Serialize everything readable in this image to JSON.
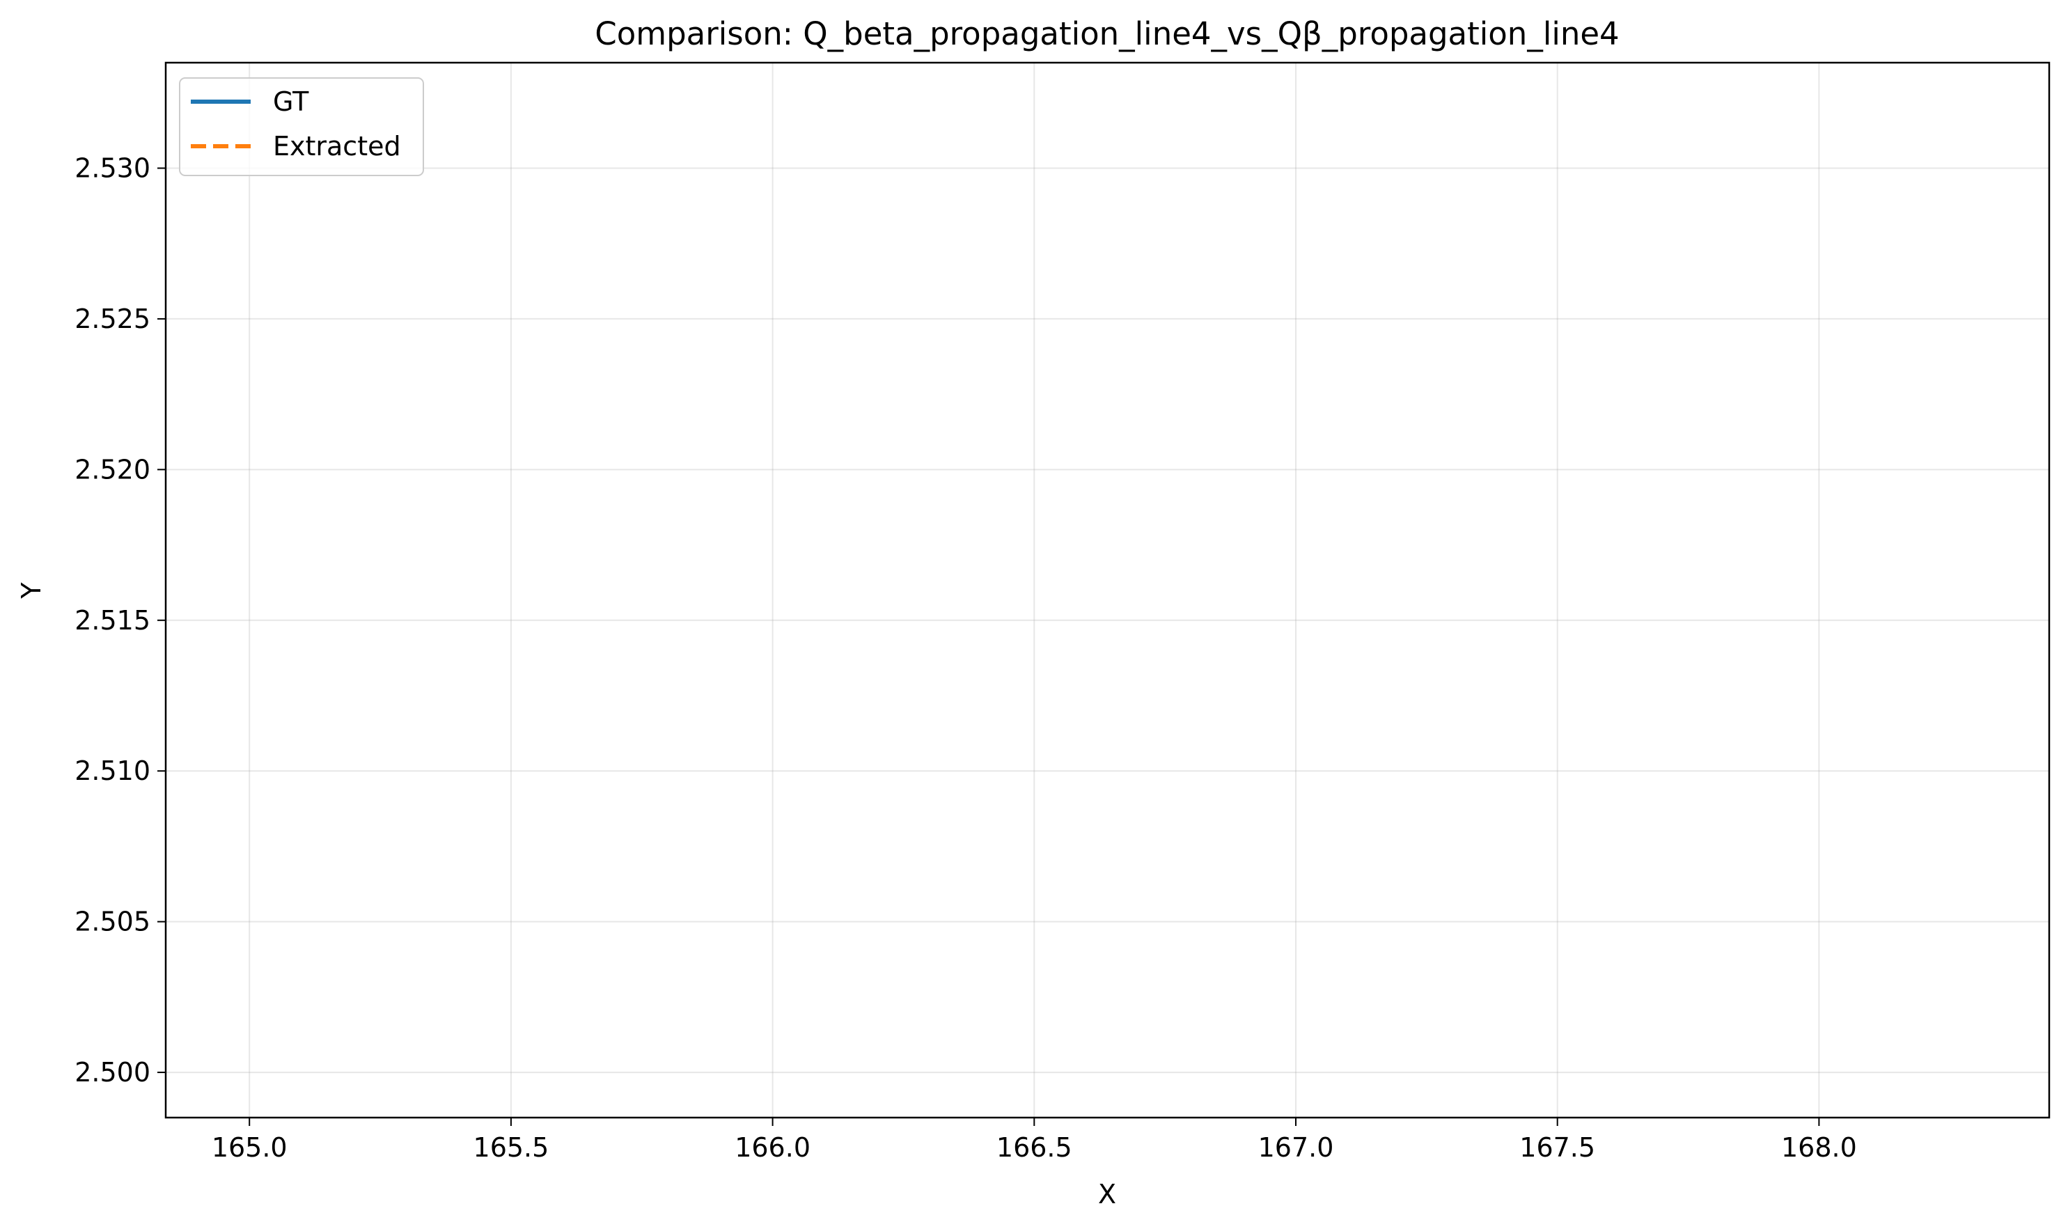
{
  "chart_data": {
    "type": "line",
    "title": "Comparison: Q_beta_propagation_line4_vs_Qβ_propagation_line4",
    "xlabel": "X",
    "ylabel": "Y",
    "xlim": [
      164.84,
      168.44
    ],
    "ylim": [
      2.4985,
      2.5335
    ],
    "x_ticks": [
      165.0,
      165.5,
      166.0,
      166.5,
      167.0,
      167.5,
      168.0
    ],
    "x_tick_labels": [
      "165.0",
      "165.5",
      "166.0",
      "166.5",
      "167.0",
      "167.5",
      "168.0"
    ],
    "y_ticks": [
      2.5,
      2.505,
      2.51,
      2.515,
      2.52,
      2.525,
      2.53
    ],
    "y_tick_labels": [
      "2.500",
      "2.505",
      "2.510",
      "2.515",
      "2.520",
      "2.525",
      "2.530"
    ],
    "grid": true,
    "legend_position": "top-left",
    "series": [
      {
        "name": "GT",
        "color": "#1f77b4",
        "style": "solid",
        "x": [],
        "y": []
      },
      {
        "name": "Extracted",
        "color": "#ff7f0e",
        "style": "dashed",
        "x": [],
        "y": []
      }
    ]
  }
}
